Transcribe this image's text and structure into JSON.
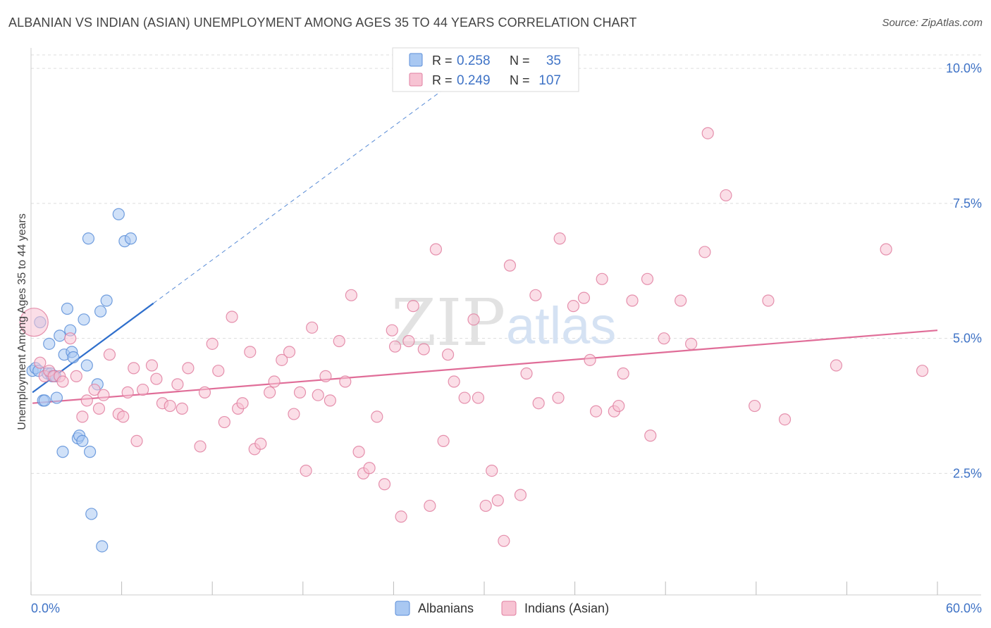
{
  "title": "ALBANIAN VS INDIAN (ASIAN) UNEMPLOYMENT AMONG AGES 35 TO 44 YEARS CORRELATION CHART",
  "source": "Source: ZipAtlas.com",
  "watermark": {
    "zip": "ZIP",
    "atlas": "atlas"
  },
  "colors": {
    "blue": "#5b8ed8",
    "blue_fill": "#a9c8f2",
    "blue_line": "#2f6fcc",
    "pink": "#e07fa0",
    "pink_fill": "#f7c3d3",
    "pink_line": "#e06d98",
    "axis_value": "#3f73c6",
    "grid": "#dddddd"
  },
  "legend_top": [
    {
      "r_label": "R =",
      "r_value": "0.258",
      "n_label": "N =",
      "n_value": "35",
      "series": "blue"
    },
    {
      "r_label": "R =",
      "r_value": "0.249",
      "n_label": "N =",
      "n_value": "107",
      "series": "pink"
    }
  ],
  "chart_data": {
    "type": "scatter",
    "title": "ALBANIAN VS INDIAN (ASIAN) UNEMPLOYMENT AMONG AGES 35 TO 44 YEARS CORRELATION CHART",
    "xlabel": "",
    "ylabel": "Unemployment Among Ages 35 to 44 years",
    "xlim": [
      0,
      60
    ],
    "ylim": [
      0.25,
      10.25
    ],
    "x_tick_labels": [
      {
        "value": 0,
        "label": "0.0%"
      },
      {
        "value": 60,
        "label": "60.0%"
      }
    ],
    "y_tick_labels": [
      {
        "value": 2.5,
        "label": "2.5%"
      },
      {
        "value": 5.0,
        "label": "5.0%"
      },
      {
        "value": 7.5,
        "label": "7.5%"
      },
      {
        "value": 10.0,
        "label": "10.0%"
      }
    ],
    "grid": true,
    "legend_position": "bottom-center",
    "series": [
      {
        "name": "Albanians",
        "color": "blue",
        "r": 0.258,
        "n": 35,
        "trend": {
          "x0": 0.1,
          "y0": 4.0,
          "x1": 8.1,
          "y1": 5.65,
          "dashed_to_x": 27.5
        },
        "points": [
          [
            0.1,
            4.4
          ],
          [
            0.3,
            4.45
          ],
          [
            0.5,
            4.4
          ],
          [
            0.6,
            5.3
          ],
          [
            0.8,
            3.85
          ],
          [
            0.9,
            3.85
          ],
          [
            1.1,
            4.35
          ],
          [
            1.2,
            4.9
          ],
          [
            1.3,
            4.35
          ],
          [
            1.4,
            4.3
          ],
          [
            1.5,
            4.3
          ],
          [
            1.6,
            4.3
          ],
          [
            1.7,
            3.9
          ],
          [
            1.9,
            5.05
          ],
          [
            2.1,
            2.9
          ],
          [
            2.2,
            4.7
          ],
          [
            2.4,
            5.55
          ],
          [
            2.6,
            5.15
          ],
          [
            2.7,
            4.75
          ],
          [
            2.8,
            4.65
          ],
          [
            3.1,
            3.15
          ],
          [
            3.2,
            3.2
          ],
          [
            3.4,
            3.1
          ],
          [
            3.5,
            5.35
          ],
          [
            3.7,
            4.5
          ],
          [
            3.8,
            6.85
          ],
          [
            3.9,
            2.9
          ],
          [
            4.0,
            1.75
          ],
          [
            4.4,
            4.15
          ],
          [
            4.6,
            5.5
          ],
          [
            4.7,
            1.15
          ],
          [
            5.0,
            5.7
          ],
          [
            5.8,
            7.3
          ],
          [
            6.2,
            6.8
          ],
          [
            6.6,
            6.85
          ]
        ]
      },
      {
        "name": "Indians (Asian)",
        "color": "pink",
        "r": 0.249,
        "n": 107,
        "trend": {
          "x0": 0.1,
          "y0": 3.8,
          "x1": 60,
          "y1": 5.15
        },
        "points": [
          [
            0.2,
            5.3
          ],
          [
            0.6,
            4.55
          ],
          [
            0.9,
            4.3
          ],
          [
            1.2,
            4.4
          ],
          [
            1.5,
            4.3
          ],
          [
            1.9,
            4.3
          ],
          [
            2.1,
            4.2
          ],
          [
            2.6,
            5.0
          ],
          [
            3.0,
            4.3
          ],
          [
            3.4,
            3.55
          ],
          [
            3.7,
            3.85
          ],
          [
            4.2,
            4.05
          ],
          [
            4.5,
            3.7
          ],
          [
            4.8,
            3.95
          ],
          [
            5.2,
            4.7
          ],
          [
            5.8,
            3.6
          ],
          [
            6.1,
            3.55
          ],
          [
            6.4,
            4.0
          ],
          [
            6.8,
            4.45
          ],
          [
            7.0,
            3.1
          ],
          [
            7.4,
            4.05
          ],
          [
            8.0,
            4.5
          ],
          [
            8.3,
            4.25
          ],
          [
            8.7,
            3.8
          ],
          [
            9.2,
            3.75
          ],
          [
            9.7,
            4.15
          ],
          [
            10.0,
            3.7
          ],
          [
            10.4,
            4.45
          ],
          [
            11.2,
            3.0
          ],
          [
            11.5,
            4.0
          ],
          [
            12.0,
            4.9
          ],
          [
            12.4,
            4.4
          ],
          [
            12.8,
            3.45
          ],
          [
            13.3,
            5.4
          ],
          [
            13.7,
            3.7
          ],
          [
            14.0,
            3.8
          ],
          [
            14.5,
            4.75
          ],
          [
            14.8,
            2.95
          ],
          [
            15.2,
            3.05
          ],
          [
            15.8,
            4.0
          ],
          [
            16.1,
            4.2
          ],
          [
            16.6,
            4.6
          ],
          [
            17.1,
            4.75
          ],
          [
            17.4,
            3.6
          ],
          [
            17.8,
            4.0
          ],
          [
            18.2,
            2.55
          ],
          [
            18.6,
            5.2
          ],
          [
            19.0,
            3.95
          ],
          [
            19.5,
            4.3
          ],
          [
            19.8,
            3.85
          ],
          [
            20.4,
            4.95
          ],
          [
            20.8,
            4.2
          ],
          [
            21.2,
            5.8
          ],
          [
            21.7,
            2.9
          ],
          [
            22.0,
            2.5
          ],
          [
            22.4,
            2.6
          ],
          [
            22.9,
            3.55
          ],
          [
            23.4,
            2.3
          ],
          [
            23.9,
            5.15
          ],
          [
            24.1,
            4.85
          ],
          [
            24.5,
            1.7
          ],
          [
            25.0,
            4.95
          ],
          [
            25.3,
            5.6
          ],
          [
            26.0,
            4.8
          ],
          [
            26.4,
            1.9
          ],
          [
            26.8,
            6.65
          ],
          [
            27.3,
            3.1
          ],
          [
            27.6,
            4.7
          ],
          [
            28.0,
            4.2
          ],
          [
            28.7,
            3.9
          ],
          [
            29.3,
            5.35
          ],
          [
            29.6,
            3.9
          ],
          [
            30.1,
            1.9
          ],
          [
            30.5,
            2.55
          ],
          [
            30.9,
            2.0
          ],
          [
            31.3,
            1.25
          ],
          [
            31.7,
            6.35
          ],
          [
            32.4,
            2.1
          ],
          [
            32.8,
            4.35
          ],
          [
            33.4,
            5.8
          ],
          [
            33.6,
            3.8
          ],
          [
            34.9,
            3.9
          ],
          [
            35.0,
            6.85
          ],
          [
            35.9,
            5.6
          ],
          [
            36.6,
            5.75
          ],
          [
            37.0,
            4.6
          ],
          [
            37.4,
            3.65
          ],
          [
            37.8,
            6.1
          ],
          [
            38.6,
            3.65
          ],
          [
            38.9,
            3.75
          ],
          [
            39.2,
            4.35
          ],
          [
            39.8,
            5.7
          ],
          [
            40.8,
            6.1
          ],
          [
            41.0,
            3.2
          ],
          [
            41.9,
            5.0
          ],
          [
            43.0,
            5.7
          ],
          [
            43.7,
            4.9
          ],
          [
            44.6,
            6.6
          ],
          [
            44.8,
            8.8
          ],
          [
            46.0,
            7.65
          ],
          [
            47.9,
            3.75
          ],
          [
            48.8,
            5.7
          ],
          [
            49.9,
            3.5
          ],
          [
            53.3,
            4.5
          ],
          [
            56.6,
            6.65
          ],
          [
            59.0,
            4.4
          ]
        ]
      }
    ]
  },
  "bottom_legend": [
    {
      "label": "Albanians",
      "series": "blue"
    },
    {
      "label": "Indians (Asian)",
      "series": "pink"
    }
  ]
}
